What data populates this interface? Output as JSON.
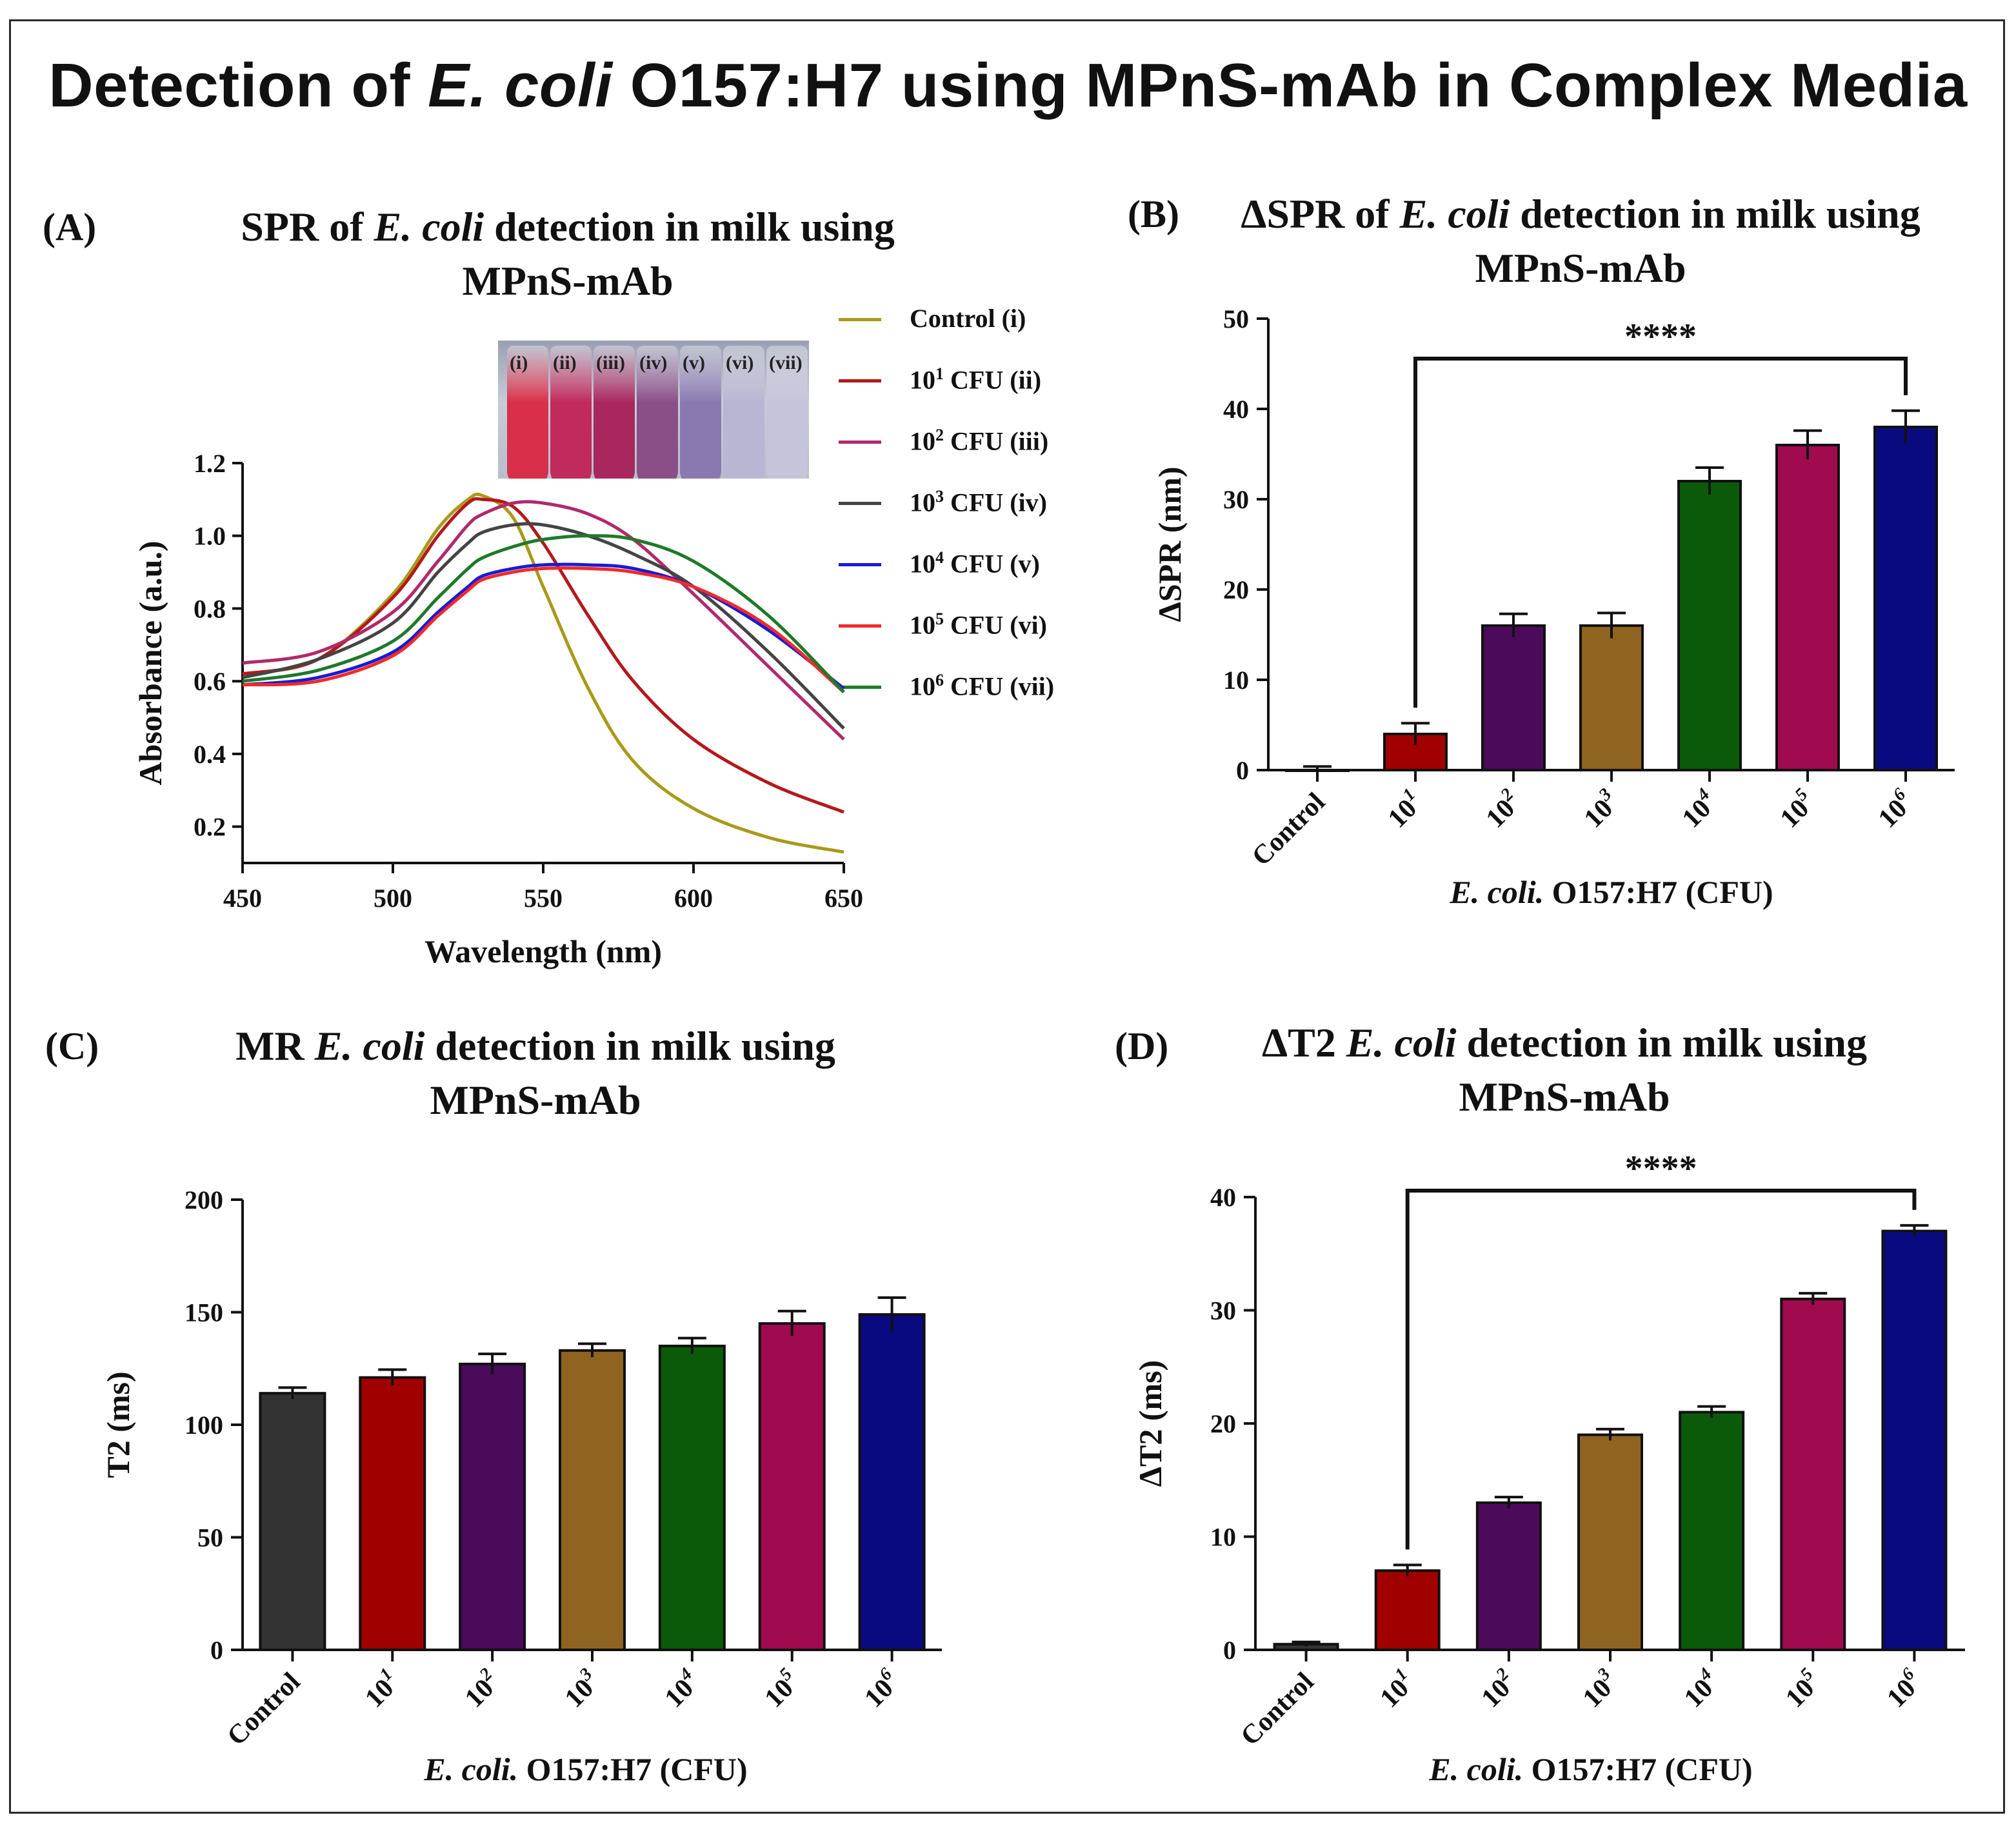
{
  "figure": {
    "title_prefix": "Detection of ",
    "title_italic": "E. coli",
    "title_suffix": " O157:H7 using MPnS-mAb in Complex Media"
  },
  "panels": {
    "a": {
      "letter": "(A)",
      "title_line1_prefix": "SPR of ",
      "title_line1_italic": "E. coli",
      "title_line1_suffix": " detection in milk using",
      "title_line2": "MPnS-mAb",
      "photo_labels": [
        "(i)",
        "(ii)",
        "(iii)",
        "(iv)",
        "(v)",
        "(vi)",
        "(vii)"
      ],
      "photo_colors": [
        "#d8304a",
        "#c02a5c",
        "#a8285e",
        "#8a4f86",
        "#8a79b0",
        "#b8b6d2",
        "#c6c4da"
      ],
      "legend": [
        {
          "base": "Control",
          "sup": "",
          "suffix": " (i)",
          "color": "#a89a1a"
        },
        {
          "base": "10",
          "sup": "1",
          "suffix": " CFU (ii)",
          "color": "#b4181c"
        },
        {
          "base": "10",
          "sup": "2",
          "suffix": " CFU (iii)",
          "color": "#b02a6a"
        },
        {
          "base": "10",
          "sup": "3",
          "suffix": " CFU (iv)",
          "color": "#444444"
        },
        {
          "base": "10",
          "sup": "4",
          "suffix": " CFU (v)",
          "color": "#1a1ad6"
        },
        {
          "base": "10",
          "sup": "5",
          "suffix": " CFU (vi)",
          "color": "#f02a2a"
        },
        {
          "base": "10",
          "sup": "6",
          "suffix": " CFU (vii)",
          "color": "#1e7a28"
        }
      ]
    },
    "b": {
      "letter": "(B)",
      "title_line1_prefix": "ΔSPR of ",
      "title_line1_italic": "E. coli",
      "title_line1_suffix": " detection in milk using",
      "title_line2": "MPnS-mAb"
    },
    "c": {
      "letter": "(C)",
      "title_line1_prefix": "MR ",
      "title_line1_italic": "E. coli",
      "title_line1_suffix": " detection in milk using",
      "title_line2": "MPnS-mAb"
    },
    "d": {
      "letter": "(D)",
      "title_line1_prefix": "ΔT2 ",
      "title_line1_italic": "E. coli",
      "title_line1_suffix": " detection in milk using",
      "title_line2": "MPnS-mAb"
    }
  },
  "chart_data": [
    {
      "id": "A",
      "type": "line",
      "xlabel": "Wavelength (nm)",
      "ylabel": "Absorbance (a.u.)",
      "xlim": [
        450,
        650
      ],
      "ylim": [
        0.1,
        1.2
      ],
      "xticks": [
        450,
        500,
        550,
        600,
        650
      ],
      "yticks": [
        0.2,
        0.4,
        0.6,
        0.8,
        1.0,
        1.2
      ],
      "ytick_labels": [
        "0.2",
        "0.4",
        "0.6",
        "0.8",
        "1.0",
        "1.2"
      ],
      "x": [
        450,
        475,
        500,
        515,
        525,
        530,
        540,
        550,
        565,
        580,
        600,
        625,
        650
      ],
      "series": [
        {
          "name": "Control (i)",
          "color": "#a89a1a",
          "values": [
            0.62,
            0.66,
            0.84,
            1.02,
            1.1,
            1.11,
            1.05,
            0.86,
            0.58,
            0.38,
            0.25,
            0.17,
            0.13
          ]
        },
        {
          "name": "10^1 CFU (ii)",
          "color": "#b4181c",
          "values": [
            0.62,
            0.66,
            0.83,
            1.0,
            1.09,
            1.1,
            1.08,
            0.98,
            0.78,
            0.6,
            0.44,
            0.32,
            0.24
          ]
        },
        {
          "name": "10^2 CFU (iii)",
          "color": "#b02a6a",
          "values": [
            0.65,
            0.68,
            0.79,
            0.93,
            1.03,
            1.06,
            1.09,
            1.09,
            1.06,
            0.99,
            0.84,
            0.64,
            0.44
          ]
        },
        {
          "name": "10^3 CFU (iv)",
          "color": "#444444",
          "values": [
            0.61,
            0.66,
            0.76,
            0.9,
            0.98,
            1.01,
            1.03,
            1.03,
            1.0,
            0.95,
            0.86,
            0.68,
            0.47
          ]
        },
        {
          "name": "10^4 CFU (v)",
          "color": "#1a1ad6",
          "values": [
            0.59,
            0.61,
            0.68,
            0.79,
            0.86,
            0.89,
            0.91,
            0.92,
            0.92,
            0.91,
            0.86,
            0.74,
            0.58
          ]
        },
        {
          "name": "10^5 CFU (vi)",
          "color": "#f02a2a",
          "values": [
            0.59,
            0.6,
            0.67,
            0.78,
            0.85,
            0.88,
            0.9,
            0.91,
            0.91,
            0.9,
            0.86,
            0.75,
            0.57
          ]
        },
        {
          "name": "10^6 CFU (vii)",
          "color": "#1e7a28",
          "values": [
            0.6,
            0.63,
            0.71,
            0.83,
            0.91,
            0.94,
            0.97,
            0.99,
            1.0,
            0.99,
            0.93,
            0.78,
            0.57
          ]
        }
      ]
    },
    {
      "id": "B",
      "type": "bar",
      "ylabel": "ΔSPR (nm)",
      "xlabel_italic": "E. coli.",
      "xlabel_rest": " O157:H7 (CFU)",
      "ylim": [
        0,
        50
      ],
      "yticks": [
        0,
        10,
        20,
        30,
        40,
        50
      ],
      "categories": [
        {
          "base": "Control",
          "sup": ""
        },
        {
          "base": "10",
          "sup": "1"
        },
        {
          "base": "10",
          "sup": "2"
        },
        {
          "base": "10",
          "sup": "3"
        },
        {
          "base": "10",
          "sup": "4"
        },
        {
          "base": "10",
          "sup": "5"
        },
        {
          "base": "10",
          "sup": "6"
        }
      ],
      "values": [
        0,
        4,
        16,
        16,
        32,
        36,
        38
      ],
      "errors": [
        0.4,
        1.2,
        1.3,
        1.4,
        1.5,
        1.6,
        1.8
      ],
      "colors": [
        "#333333",
        "#a00000",
        "#4b0a5a",
        "#8f6420",
        "#0a5a0a",
        "#a00a4e",
        "#0a0a80"
      ],
      "significance": {
        "from": 1,
        "to": 6,
        "label": "****"
      }
    },
    {
      "id": "C",
      "type": "bar",
      "ylabel": "T2 (ms)",
      "xlabel_italic": "E. coli.",
      "xlabel_rest": " O157:H7 (CFU)",
      "ylim": [
        0,
        200
      ],
      "yticks": [
        0,
        50,
        100,
        150,
        200
      ],
      "categories": [
        {
          "base": "Control",
          "sup": ""
        },
        {
          "base": "10",
          "sup": "1"
        },
        {
          "base": "10",
          "sup": "2"
        },
        {
          "base": "10",
          "sup": "3"
        },
        {
          "base": "10",
          "sup": "4"
        },
        {
          "base": "10",
          "sup": "5"
        },
        {
          "base": "10",
          "sup": "6"
        }
      ],
      "values": [
        114,
        121,
        127,
        133,
        135,
        145,
        149
      ],
      "errors": [
        2.5,
        3.5,
        4.5,
        3.0,
        3.5,
        5.5,
        7.5
      ],
      "colors": [
        "#333333",
        "#a00000",
        "#4b0a5a",
        "#8f6420",
        "#0a5a0a",
        "#a00a4e",
        "#0a0a80"
      ]
    },
    {
      "id": "D",
      "type": "bar",
      "ylabel": "ΔT2 (ms)",
      "xlabel_italic": "E. coli.",
      "xlabel_rest": " O157:H7 (CFU)",
      "ylim": [
        0,
        40
      ],
      "yticks": [
        0,
        10,
        20,
        30,
        40
      ],
      "categories": [
        {
          "base": "Control",
          "sup": ""
        },
        {
          "base": "10",
          "sup": "1"
        },
        {
          "base": "10",
          "sup": "2"
        },
        {
          "base": "10",
          "sup": "3"
        },
        {
          "base": "10",
          "sup": "4"
        },
        {
          "base": "10",
          "sup": "5"
        },
        {
          "base": "10",
          "sup": "6"
        }
      ],
      "values": [
        0.5,
        7,
        13,
        19,
        21,
        31,
        37
      ],
      "errors": [
        0.2,
        0.5,
        0.5,
        0.5,
        0.5,
        0.5,
        0.5
      ],
      "colors": [
        "#333333",
        "#a00000",
        "#4b0a5a",
        "#8f6420",
        "#0a5a0a",
        "#a00a4e",
        "#0a0a80"
      ],
      "significance": {
        "from": 1,
        "to": 6,
        "label": "****"
      }
    }
  ]
}
